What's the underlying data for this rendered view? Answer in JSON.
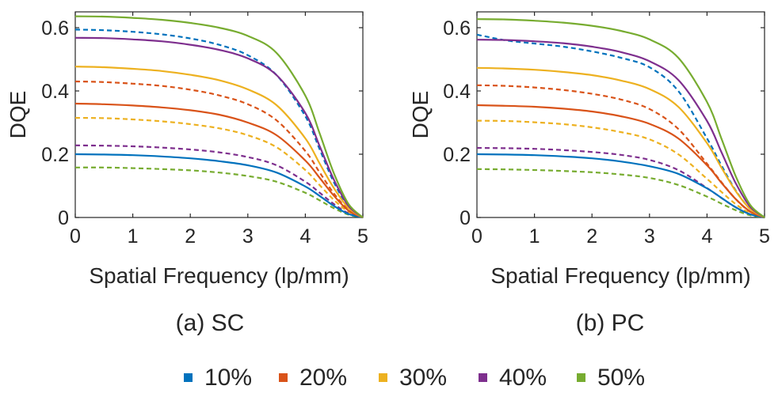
{
  "chart_data": [
    {
      "type": "line",
      "caption": "(a) SC",
      "xlabel": "Spatial Frequency (lp/mm)",
      "ylabel": "DQE",
      "xlim": [
        0,
        5
      ],
      "ylim": [
        0,
        0.65
      ],
      "xticks": [
        "0",
        "1",
        "2",
        "3",
        "4",
        "5"
      ],
      "yticks": [
        "0",
        "0.2",
        "0.4",
        "0.6"
      ],
      "x": [
        0,
        0.5,
        1,
        1.5,
        2,
        2.5,
        3,
        3.5,
        4,
        4.25,
        4.5,
        4.75,
        5
      ],
      "series": [
        {
          "name": "10%",
          "style": "solid",
          "values": [
            0.2,
            0.199,
            0.197,
            0.193,
            0.187,
            0.178,
            0.165,
            0.142,
            0.098,
            0.068,
            0.036,
            0.011,
            0
          ]
        },
        {
          "name": "20%",
          "style": "solid",
          "values": [
            0.36,
            0.358,
            0.354,
            0.348,
            0.339,
            0.325,
            0.3,
            0.26,
            0.18,
            0.125,
            0.068,
            0.022,
            0
          ]
        },
        {
          "name": "30%",
          "style": "solid",
          "values": [
            0.477,
            0.475,
            0.47,
            0.463,
            0.451,
            0.434,
            0.405,
            0.355,
            0.25,
            0.17,
            0.092,
            0.03,
            0
          ]
        },
        {
          "name": "40%",
          "style": "solid",
          "values": [
            0.568,
            0.567,
            0.563,
            0.557,
            0.546,
            0.53,
            0.503,
            0.45,
            0.33,
            0.225,
            0.118,
            0.037,
            0
          ]
        },
        {
          "name": "50%",
          "style": "solid",
          "values": [
            0.636,
            0.635,
            0.631,
            0.625,
            0.615,
            0.6,
            0.574,
            0.52,
            0.385,
            0.265,
            0.138,
            0.043,
            0
          ]
        },
        {
          "name": "10%",
          "style": "dashed",
          "values": [
            0.594,
            0.592,
            0.587,
            0.579,
            0.566,
            0.546,
            0.513,
            0.45,
            0.32,
            0.215,
            0.11,
            0.035,
            0
          ]
        },
        {
          "name": "20%",
          "style": "dashed",
          "values": [
            0.43,
            0.428,
            0.423,
            0.416,
            0.404,
            0.386,
            0.358,
            0.307,
            0.21,
            0.142,
            0.075,
            0.024,
            0
          ]
        },
        {
          "name": "30%",
          "style": "dashed",
          "values": [
            0.315,
            0.314,
            0.31,
            0.304,
            0.295,
            0.282,
            0.26,
            0.222,
            0.15,
            0.102,
            0.055,
            0.018,
            0
          ]
        },
        {
          "name": "40%",
          "style": "dashed",
          "values": [
            0.228,
            0.227,
            0.225,
            0.221,
            0.215,
            0.206,
            0.191,
            0.165,
            0.113,
            0.078,
            0.042,
            0.013,
            0
          ]
        },
        {
          "name": "50%",
          "style": "dashed",
          "values": [
            0.158,
            0.158,
            0.156,
            0.153,
            0.149,
            0.142,
            0.131,
            0.113,
            0.078,
            0.054,
            0.029,
            0.009,
            0
          ]
        }
      ]
    },
    {
      "type": "line",
      "caption": "(b) PC",
      "xlabel": "Spatial Frequency (lp/mm)",
      "ylabel": "DQE",
      "xlim": [
        0,
        5
      ],
      "ylim": [
        0,
        0.65
      ],
      "xticks": [
        "0",
        "1",
        "2",
        "3",
        "4",
        "5"
      ],
      "yticks": [
        "0",
        "0.2",
        "0.4",
        "0.6"
      ],
      "x": [
        0,
        0.5,
        1,
        1.5,
        2,
        2.5,
        3,
        3.5,
        4,
        4.25,
        4.5,
        4.75,
        5
      ],
      "series": [
        {
          "name": "10%",
          "style": "solid",
          "values": [
            0.2,
            0.199,
            0.197,
            0.193,
            0.187,
            0.177,
            0.162,
            0.138,
            0.092,
            0.062,
            0.032,
            0.01,
            0
          ]
        },
        {
          "name": "20%",
          "style": "solid",
          "values": [
            0.355,
            0.353,
            0.35,
            0.344,
            0.335,
            0.32,
            0.296,
            0.25,
            0.165,
            0.11,
            0.058,
            0.019,
            0
          ]
        },
        {
          "name": "30%",
          "style": "solid",
          "values": [
            0.473,
            0.471,
            0.467,
            0.46,
            0.45,
            0.433,
            0.406,
            0.35,
            0.235,
            0.158,
            0.083,
            0.027,
            0
          ]
        },
        {
          "name": "40%",
          "style": "solid",
          "values": [
            0.562,
            0.561,
            0.557,
            0.551,
            0.54,
            0.523,
            0.494,
            0.435,
            0.305,
            0.207,
            0.108,
            0.034,
            0
          ]
        },
        {
          "name": "50%",
          "style": "solid",
          "values": [
            0.627,
            0.626,
            0.622,
            0.616,
            0.606,
            0.59,
            0.563,
            0.505,
            0.365,
            0.25,
            0.13,
            0.04,
            0
          ]
        },
        {
          "name": "10%",
          "style": "dashed",
          "values": [
            0.578,
            0.56,
            0.55,
            0.54,
            0.525,
            0.505,
            0.475,
            0.4,
            0.25,
            0.165,
            0.085,
            0.027,
            0
          ]
        },
        {
          "name": "20%",
          "style": "dashed",
          "values": [
            0.418,
            0.416,
            0.411,
            0.403,
            0.391,
            0.373,
            0.343,
            0.28,
            0.17,
            0.112,
            0.058,
            0.018,
            0
          ]
        },
        {
          "name": "30%",
          "style": "dashed",
          "values": [
            0.306,
            0.305,
            0.301,
            0.295,
            0.285,
            0.27,
            0.247,
            0.2,
            0.122,
            0.081,
            0.042,
            0.013,
            0
          ]
        },
        {
          "name": "40%",
          "style": "dashed",
          "values": [
            0.22,
            0.219,
            0.217,
            0.213,
            0.207,
            0.198,
            0.182,
            0.15,
            0.093,
            0.062,
            0.032,
            0.01,
            0
          ]
        },
        {
          "name": "50%",
          "style": "dashed",
          "values": [
            0.153,
            0.152,
            0.15,
            0.147,
            0.143,
            0.136,
            0.125,
            0.103,
            0.066,
            0.044,
            0.023,
            0.007,
            0
          ]
        }
      ]
    }
  ],
  "legend": [
    {
      "label": "10%",
      "color": "#0072BD"
    },
    {
      "label": "20%",
      "color": "#D95319"
    },
    {
      "label": "30%",
      "color": "#EDB120"
    },
    {
      "label": "40%",
      "color": "#7E2F8E"
    },
    {
      "label": "50%",
      "color": "#77AC30"
    }
  ],
  "colors": {
    "10%": "#0072BD",
    "20%": "#D95319",
    "30%": "#EDB120",
    "40%": "#7E2F8E",
    "50%": "#77AC30",
    "axis": "#262626"
  }
}
